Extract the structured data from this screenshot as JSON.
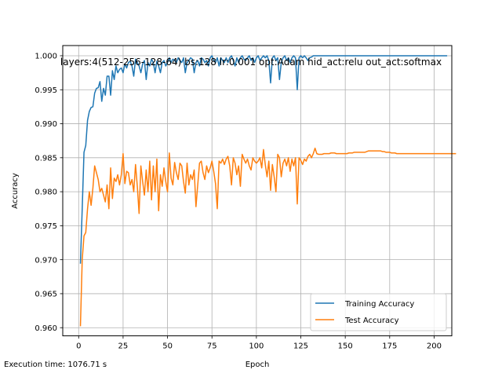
{
  "chart_data": {
    "type": "line",
    "title": "layers:4(512-256-128-64) bs:128 lr:0.001 opt:Adam hid_act:relu out_act:softmax",
    "xlabel": "Epoch",
    "ylabel": "Accuracy",
    "xlim": [
      1,
      200
    ],
    "ylim": [
      0.9588,
      1.0015
    ],
    "grid": true,
    "legend_position": "lower-right",
    "x_ticks": [
      0,
      25,
      50,
      75,
      100,
      125,
      150,
      175,
      200
    ],
    "y_ticks": [
      0.96,
      0.965,
      0.97,
      0.975,
      0.98,
      0.985,
      0.99,
      0.995,
      1.0
    ],
    "x_tick_labels": [
      "0",
      "25",
      "50",
      "75",
      "100",
      "125",
      "150",
      "175",
      "200"
    ],
    "y_tick_labels": [
      "0.960",
      "0.965",
      "0.970",
      "0.975",
      "0.980",
      "0.985",
      "0.990",
      "0.995",
      "1.000"
    ],
    "annotation": "Execution time: 1076.71 s",
    "series": [
      {
        "name": "Training Accuracy",
        "color": "#1f77b4",
        "values": [
          0.9695,
          0.9775,
          0.9858,
          0.9868,
          0.9905,
          0.9918,
          0.9924,
          0.9925,
          0.9945,
          0.9952,
          0.9953,
          0.9962,
          0.9933,
          0.9952,
          0.9942,
          0.997,
          0.997,
          0.9942,
          0.9978,
          0.9965,
          0.9985,
          0.9975,
          0.998,
          0.9982,
          0.9975,
          0.9988,
          0.9982,
          0.999,
          0.9992,
          0.9985,
          0.997,
          0.9995,
          0.999,
          0.9985,
          0.9975,
          0.9988,
          0.9993,
          0.9965,
          0.999,
          0.9985,
          0.9995,
          0.999,
          0.9975,
          0.9992,
          0.9985,
          0.9975,
          0.999,
          0.9993,
          0.9985,
          0.999,
          0.9997,
          0.999,
          0.9995,
          0.9993,
          0.999,
          0.9997,
          0.9993,
          0.999,
          0.9997,
          0.9975,
          0.999,
          0.9993,
          0.9997,
          0.9995,
          0.9975,
          0.999,
          0.9993,
          0.9985,
          0.9997,
          0.9995,
          0.999,
          0.9993,
          0.9985,
          0.9997,
          1.0,
          0.9993,
          0.999,
          0.9997,
          0.9985,
          0.9997,
          0.9993,
          0.999,
          0.9997,
          0.999,
          0.9997,
          1.0,
          0.9993,
          0.9985,
          0.9997,
          0.999,
          0.9997,
          1.0,
          0.9995,
          0.9993,
          0.9997,
          1.0,
          0.9993,
          0.9997,
          0.999,
          0.9997,
          1.0,
          0.9993,
          0.9997,
          1.0,
          0.9997,
          1.0,
          0.9993,
          0.996,
          0.9997,
          1.0,
          0.9993,
          0.9997,
          0.9965,
          0.999,
          0.9997,
          1.0,
          0.9993,
          0.9997,
          0.999,
          0.9997,
          1.0,
          0.9997,
          0.995,
          0.9997,
          1.0,
          0.9997,
          1.0,
          0.9997,
          0.9993,
          0.9997,
          0.9998,
          1.0,
          1.0,
          1.0,
          1.0,
          1.0,
          1.0,
          1.0,
          1.0,
          1.0,
          1.0,
          1.0,
          1.0,
          1.0,
          1.0,
          1.0,
          1.0,
          1.0,
          1.0,
          1.0,
          1.0,
          1.0,
          1.0,
          1.0,
          1.0,
          1.0,
          1.0,
          1.0,
          1.0,
          1.0,
          1.0,
          1.0,
          1.0,
          1.0,
          1.0,
          1.0,
          1.0,
          1.0,
          1.0,
          1.0,
          1.0,
          1.0,
          1.0,
          1.0,
          1.0,
          1.0,
          1.0,
          1.0,
          1.0,
          1.0,
          1.0,
          1.0,
          1.0,
          1.0,
          1.0,
          1.0,
          1.0,
          1.0,
          1.0,
          1.0,
          1.0,
          1.0,
          1.0,
          1.0,
          1.0,
          1.0,
          1.0,
          1.0,
          1.0,
          1.0,
          1.0,
          1.0,
          1.0,
          1.0,
          1.0,
          1.0,
          1.0
        ]
      },
      {
        "name": "Test Accuracy",
        "color": "#ff7f0e",
        "values": [
          0.9603,
          0.97,
          0.9735,
          0.974,
          0.9775,
          0.98,
          0.978,
          0.9805,
          0.9838,
          0.9828,
          0.9818,
          0.98,
          0.9805,
          0.9795,
          0.9785,
          0.981,
          0.9775,
          0.9835,
          0.979,
          0.982,
          0.9815,
          0.9825,
          0.981,
          0.9825,
          0.9856,
          0.9812,
          0.983,
          0.9828,
          0.981,
          0.9818,
          0.98,
          0.984,
          0.9808,
          0.9768,
          0.9838,
          0.9815,
          0.9795,
          0.9832,
          0.98,
          0.9845,
          0.9788,
          0.9838,
          0.98,
          0.9848,
          0.9772,
          0.9825,
          0.9808,
          0.9835,
          0.9815,
          0.98,
          0.9857,
          0.982,
          0.981,
          0.9843,
          0.9828,
          0.9818,
          0.9842,
          0.9838,
          0.9815,
          0.9798,
          0.9842,
          0.981,
          0.9825,
          0.9818,
          0.9832,
          0.9778,
          0.981,
          0.9842,
          0.9845,
          0.9828,
          0.9818,
          0.9838,
          0.9828,
          0.9835,
          0.9845,
          0.983,
          0.9812,
          0.9775,
          0.9845,
          0.9842,
          0.9848,
          0.984,
          0.9848,
          0.9852,
          0.9838,
          0.981,
          0.985,
          0.9842,
          0.9825,
          0.9838,
          0.9808,
          0.9855,
          0.9848,
          0.9842,
          0.9848,
          0.9838,
          0.9832,
          0.985,
          0.9845,
          0.9842,
          0.9845,
          0.985,
          0.9835,
          0.9862,
          0.984,
          0.9822,
          0.9845,
          0.9802,
          0.984,
          0.9822,
          0.98,
          0.9855,
          0.985,
          0.9822,
          0.9842,
          0.9848,
          0.9838,
          0.985,
          0.983,
          0.9848,
          0.9838,
          0.985,
          0.9782,
          0.985,
          0.9846,
          0.984,
          0.9848,
          0.9845,
          0.9852,
          0.9855,
          0.985,
          0.9856,
          0.9864,
          0.9856,
          0.9855,
          0.9855,
          0.9855,
          0.9856,
          0.9856,
          0.9856,
          0.9856,
          0.9857,
          0.9857,
          0.9857,
          0.9856,
          0.9856,
          0.9856,
          0.9856,
          0.9856,
          0.9856,
          0.9856,
          0.9857,
          0.9857,
          0.9857,
          0.9858,
          0.9858,
          0.9858,
          0.9858,
          0.9858,
          0.9858,
          0.9858,
          0.9859,
          0.986,
          0.986,
          0.986,
          0.986,
          0.986,
          0.986,
          0.986,
          0.986,
          0.9859,
          0.9859,
          0.9858,
          0.9858,
          0.9858,
          0.9857,
          0.9857,
          0.9857,
          0.9856,
          0.9856,
          0.9856,
          0.9856,
          0.9856,
          0.9856,
          0.9856,
          0.9856,
          0.9856,
          0.9856,
          0.9856,
          0.9856,
          0.9856,
          0.9856,
          0.9856,
          0.9856,
          0.9856,
          0.9856,
          0.9856,
          0.9856,
          0.9856,
          0.9856,
          0.9856,
          0.9856,
          0.9856,
          0.9856,
          0.9856,
          0.9856,
          0.9856,
          0.9856,
          0.9856,
          0.9856,
          0.9856,
          0.9856
        ]
      }
    ]
  }
}
